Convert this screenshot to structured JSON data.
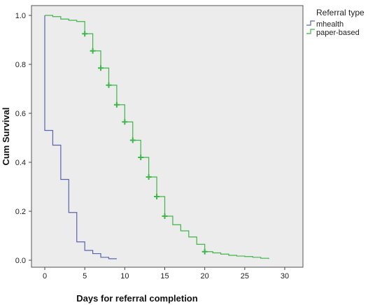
{
  "chart_data": {
    "type": "line",
    "step": true,
    "xlabel": "Days for referral completion",
    "ylabel": "Cum Survival",
    "xlim": [
      0,
      30
    ],
    "ylim": [
      0,
      1.0
    ],
    "xticks": [
      0,
      5,
      10,
      15,
      20,
      25,
      30
    ],
    "yticks": [
      0.0,
      0.2,
      0.4,
      0.6,
      0.8,
      1.0
    ],
    "grid": false,
    "legend": {
      "title": "Referral type",
      "placement": "right"
    },
    "series": [
      {
        "name": "mhealth",
        "color": "#5a63b0",
        "x": [
          0,
          0,
          1,
          2,
          3,
          4,
          5,
          6,
          7,
          8,
          9
        ],
        "y": [
          1.0,
          0.53,
          0.47,
          0.33,
          0.195,
          0.075,
          0.04,
          0.027,
          0.012,
          0.006,
          0.006
        ],
        "censored": []
      },
      {
        "name": "paper-based",
        "color": "#3fb54a",
        "x": [
          0,
          1,
          2,
          3,
          4,
          5,
          6,
          7,
          8,
          9,
          10,
          11,
          12,
          13,
          14,
          15,
          16,
          17,
          18,
          19,
          20,
          21,
          22,
          23,
          24,
          25,
          26,
          27,
          28
        ],
        "y": [
          1.0,
          0.995,
          0.985,
          0.98,
          0.975,
          0.925,
          0.855,
          0.785,
          0.715,
          0.635,
          0.565,
          0.49,
          0.42,
          0.34,
          0.26,
          0.18,
          0.145,
          0.12,
          0.095,
          0.065,
          0.035,
          0.03,
          0.025,
          0.02,
          0.017,
          0.015,
          0.012,
          0.008,
          0.005
        ],
        "censored": [
          [
            5,
            0.925
          ],
          [
            6,
            0.855
          ],
          [
            7,
            0.785
          ],
          [
            8,
            0.715
          ],
          [
            9,
            0.635
          ],
          [
            10,
            0.565
          ],
          [
            11,
            0.49
          ],
          [
            12,
            0.42
          ],
          [
            13,
            0.34
          ],
          [
            14,
            0.26
          ],
          [
            15,
            0.18
          ],
          [
            20,
            0.035
          ]
        ]
      }
    ]
  }
}
